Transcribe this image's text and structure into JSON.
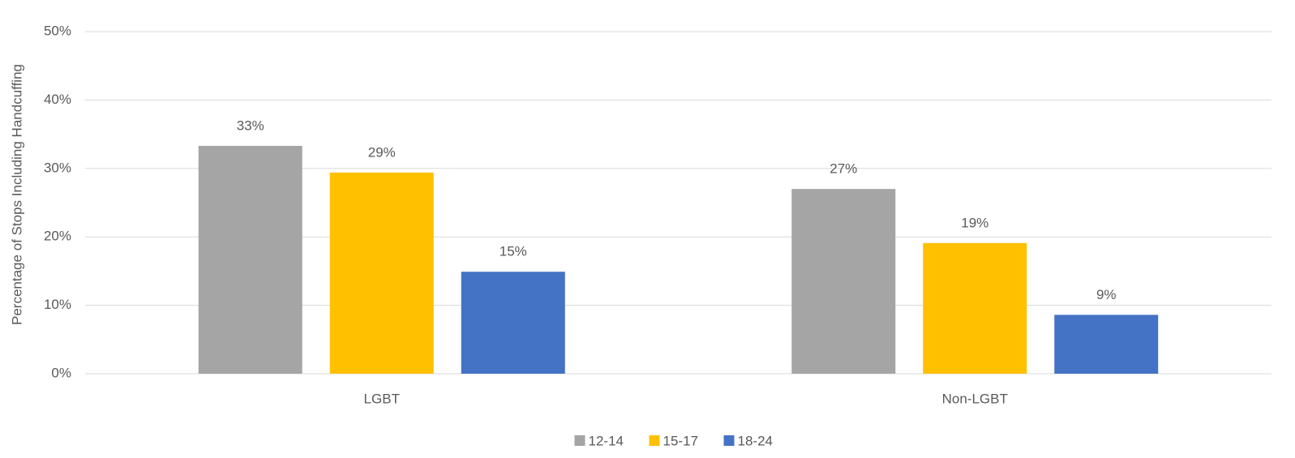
{
  "chart_data": {
    "type": "bar",
    "y_label": "Percentage of Stops Including Handcuffing",
    "categories": [
      "LGBT",
      "Non-LGBT"
    ],
    "series": [
      {
        "name": "12-14",
        "color": "#a5a5a5",
        "values": [
          33.3,
          27.0
        ],
        "value_labels": [
          "33%",
          "27%"
        ]
      },
      {
        "name": "15-17",
        "color": "#ffc000",
        "values": [
          29.4,
          19.1
        ],
        "value_labels": [
          "29%",
          "19%"
        ]
      },
      {
        "name": "18-24",
        "color": "#4472c4",
        "values": [
          14.9,
          8.6
        ],
        "value_labels": [
          "15%",
          "9%"
        ]
      }
    ],
    "ylim": [
      0,
      50
    ],
    "yticks": [
      {
        "value": 0,
        "label": "0%"
      },
      {
        "value": 10,
        "label": "10%"
      },
      {
        "value": 20,
        "label": "20%"
      },
      {
        "value": 30,
        "label": "30%"
      },
      {
        "value": 40,
        "label": "40%"
      },
      {
        "value": 50,
        "label": "50%"
      }
    ],
    "grid": true,
    "legend": "bottom"
  }
}
